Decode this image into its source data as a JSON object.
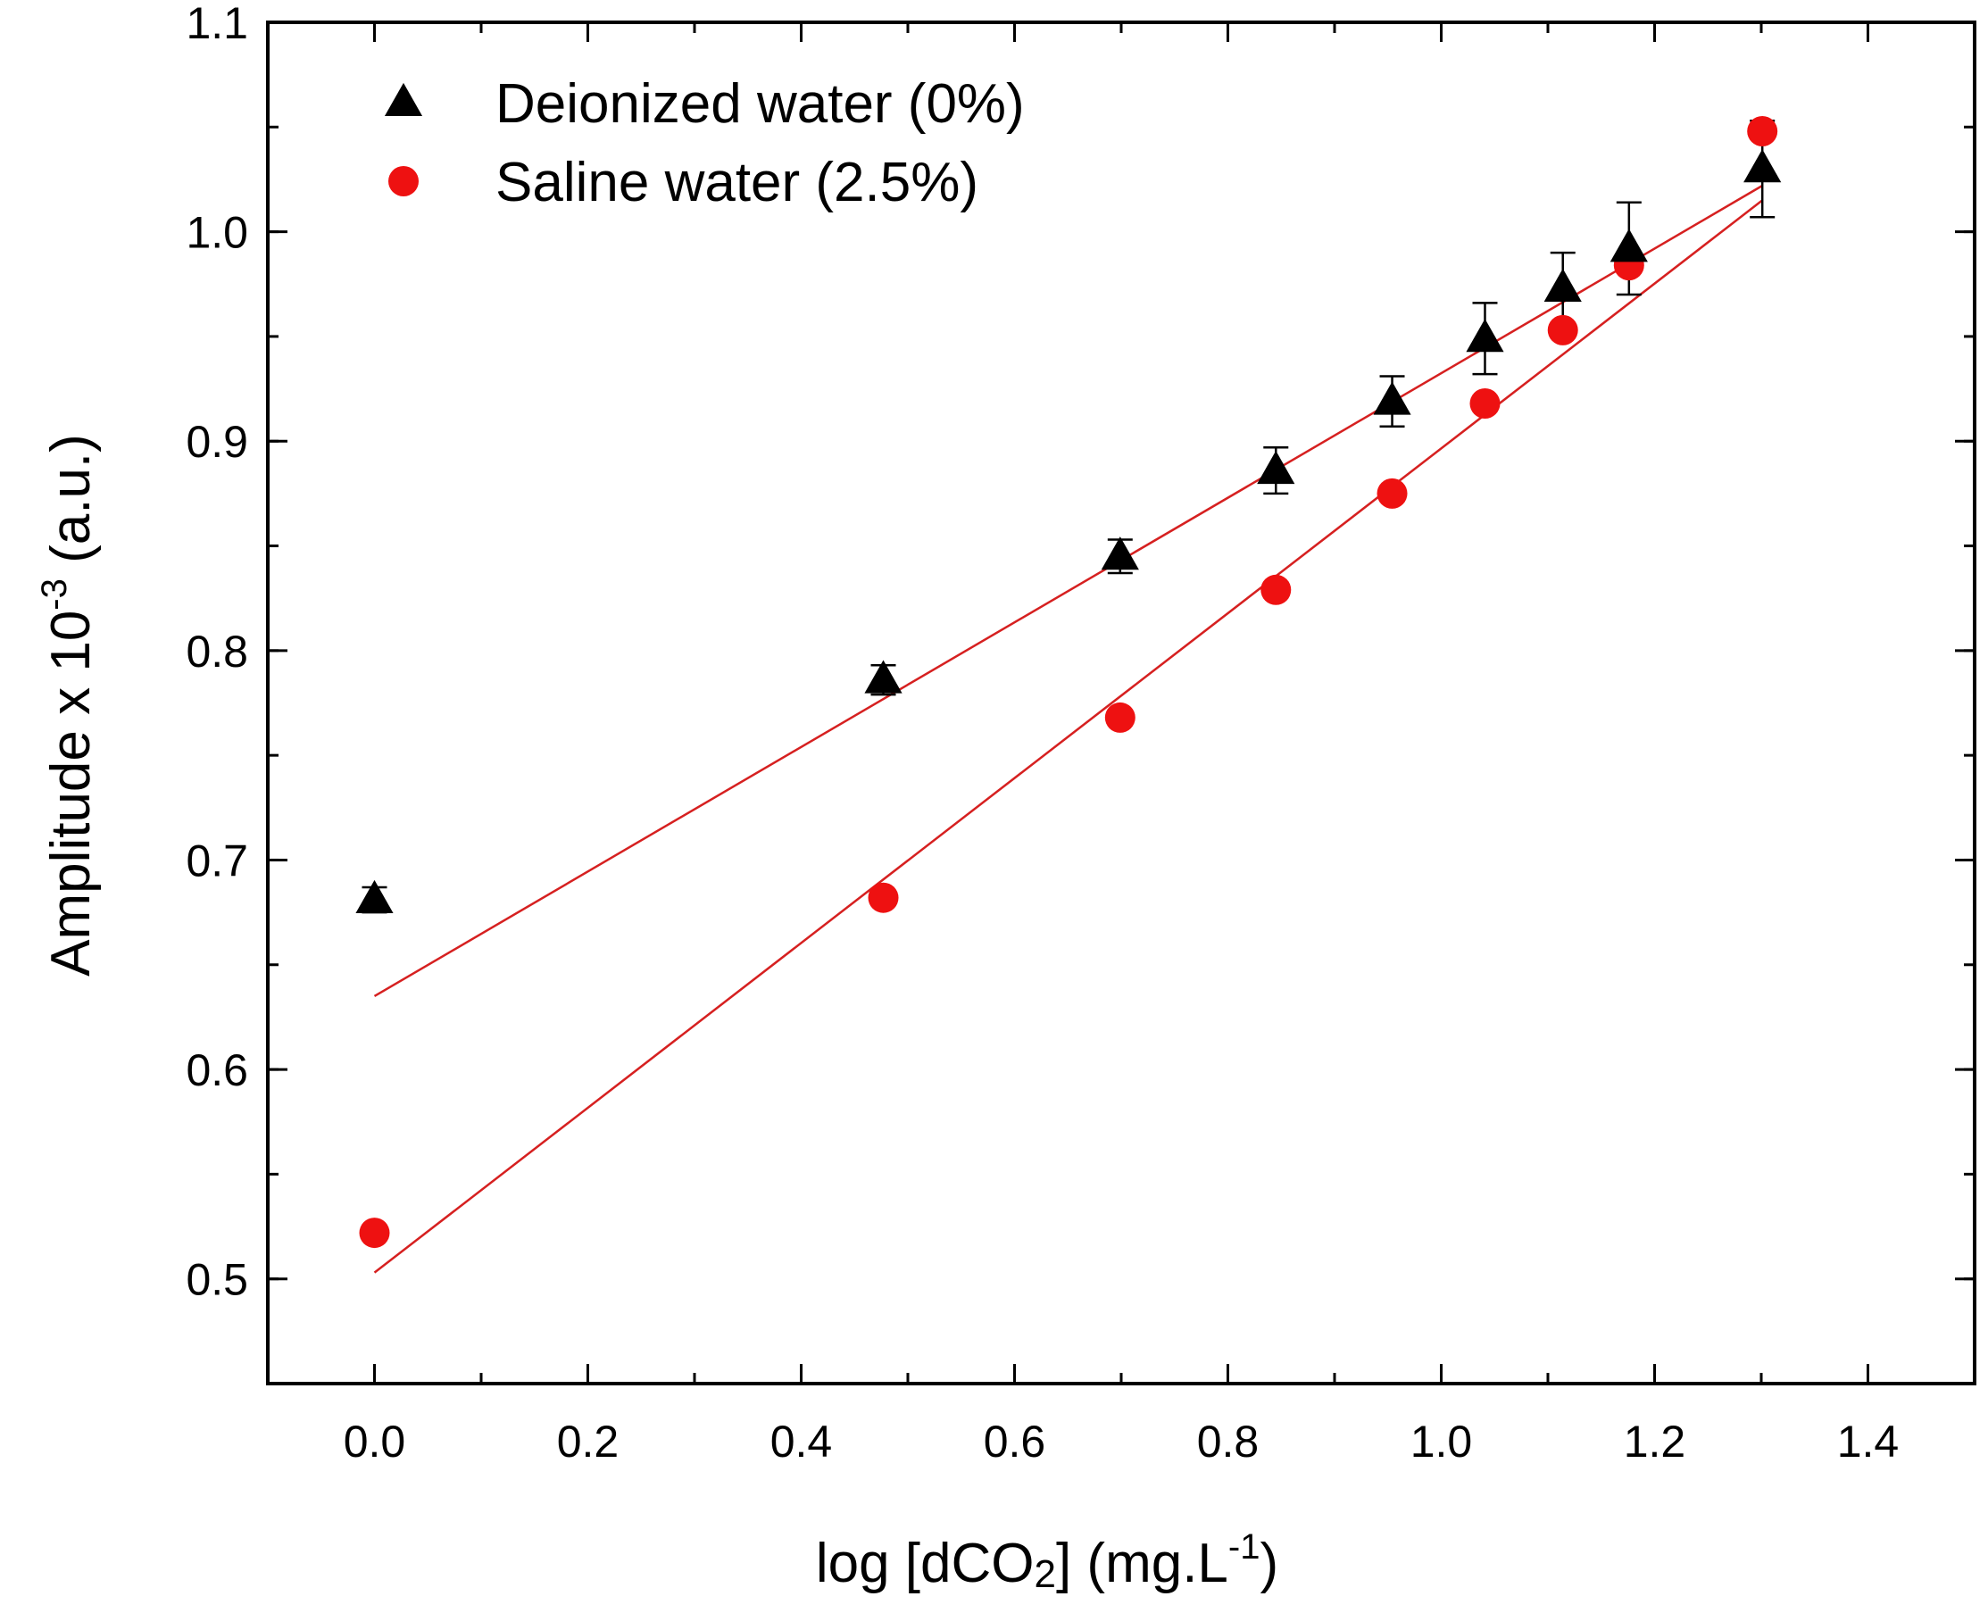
{
  "chart_data": {
    "type": "scatter",
    "title": "",
    "xlabel": {
      "main": "log [dCO",
      "sub": "2",
      "rest": "] (mg.L",
      "sup": "-1",
      "end": ")"
    },
    "ylabel": {
      "main": "Amplitude x 10",
      "sup": "-3",
      "end": " (a.u.)"
    },
    "xlim": [
      -0.1,
      1.5
    ],
    "ylim": [
      0.45,
      1.1
    ],
    "xticks": [
      0.0,
      0.2,
      0.4,
      0.6,
      0.8,
      1.0,
      1.2,
      1.4
    ],
    "xtick_labels": [
      "0.0",
      "0.2",
      "0.4",
      "0.6",
      "0.8",
      "1.0",
      "1.2",
      "1.4"
    ],
    "yticks": [
      0.5,
      0.6,
      0.7,
      0.8,
      0.9,
      1.0,
      1.1
    ],
    "ytick_labels": [
      "0.5",
      "0.6",
      "0.7",
      "0.8",
      "0.9",
      "1.0",
      "1.1"
    ],
    "legend_position": "top-left",
    "series": [
      {
        "name": "Deionized water (0%)",
        "marker": "triangle",
        "color": "#000000",
        "x": [
          0.0,
          0.477,
          0.699,
          0.845,
          0.954,
          1.041,
          1.114,
          1.176,
          1.301
        ],
        "y": [
          0.681,
          0.786,
          0.845,
          0.886,
          0.919,
          0.949,
          0.973,
          0.992,
          1.03
        ],
        "error": [
          0.006,
          0.007,
          0.008,
          0.011,
          0.012,
          0.017,
          0.017,
          0.022,
          0.023
        ],
        "fit": {
          "x": [
            0.0,
            1.301
          ],
          "y": [
            0.635,
            1.022
          ],
          "color": "#d62020"
        }
      },
      {
        "name": "Saline water (2.5%)",
        "marker": "circle",
        "color": "#ee1111",
        "x": [
          0.0,
          0.477,
          0.699,
          0.845,
          0.954,
          1.041,
          1.114,
          1.176,
          1.301
        ],
        "y": [
          0.522,
          0.682,
          0.768,
          0.829,
          0.875,
          0.918,
          0.953,
          0.984,
          1.048
        ],
        "fit": {
          "x": [
            0.0,
            1.301
          ],
          "y": [
            0.503,
            1.015
          ],
          "color": "#d62020"
        }
      }
    ]
  }
}
